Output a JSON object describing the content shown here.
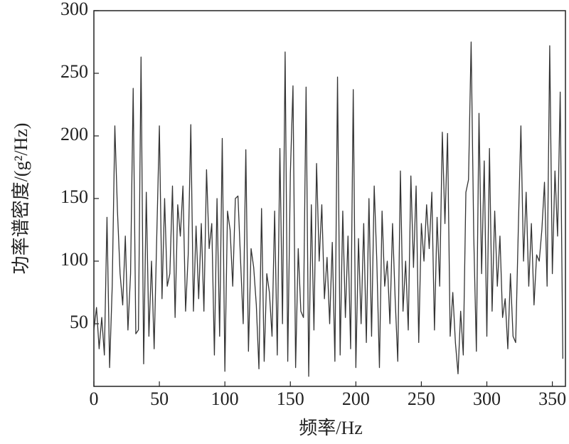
{
  "chart_data": {
    "type": "line",
    "xlabel": "频率/Hz",
    "ylabel": "功率谱密度/(g²/Hz)",
    "x": [
      0,
      2,
      4,
      6,
      8,
      10,
      12,
      14,
      16,
      18,
      20,
      22,
      24,
      26,
      28,
      30,
      32,
      34,
      36,
      38,
      40,
      42,
      44,
      46,
      48,
      50,
      52,
      54,
      56,
      58,
      60,
      62,
      64,
      66,
      68,
      70,
      72,
      74,
      76,
      78,
      80,
      82,
      84,
      86,
      88,
      90,
      92,
      94,
      96,
      98,
      100,
      102,
      104,
      106,
      108,
      110,
      112,
      114,
      116,
      118,
      120,
      122,
      124,
      126,
      128,
      130,
      132,
      134,
      136,
      138,
      140,
      142,
      144,
      146,
      148,
      150,
      152,
      154,
      156,
      158,
      160,
      162,
      164,
      166,
      168,
      170,
      172,
      174,
      176,
      178,
      180,
      182,
      184,
      186,
      188,
      190,
      192,
      194,
      196,
      198,
      200,
      202,
      204,
      206,
      208,
      210,
      212,
      214,
      216,
      218,
      220,
      222,
      224,
      226,
      228,
      230,
      232,
      234,
      236,
      238,
      240,
      242,
      244,
      246,
      248,
      250,
      252,
      254,
      256,
      258,
      260,
      262,
      264,
      266,
      268,
      270,
      272,
      274,
      276,
      278,
      280,
      282,
      284,
      286,
      288,
      290,
      292,
      294,
      296,
      298,
      300,
      302,
      304,
      306,
      308,
      310,
      312,
      314,
      316,
      318,
      320,
      322,
      324,
      326,
      328,
      330,
      332,
      334,
      336,
      338,
      340,
      342,
      344,
      346,
      348,
      350,
      352,
      354,
      356,
      358
    ],
    "values": [
      45,
      63,
      30,
      55,
      25,
      135,
      15,
      80,
      208,
      140,
      90,
      65,
      120,
      45,
      90,
      238,
      42,
      45,
      263,
      18,
      155,
      40,
      100,
      30,
      120,
      208,
      70,
      150,
      80,
      90,
      160,
      55,
      145,
      120,
      160,
      60,
      105,
      209,
      60,
      128,
      70,
      130,
      60,
      173,
      110,
      130,
      25,
      150,
      40,
      198,
      12,
      140,
      125,
      80,
      150,
      152,
      100,
      50,
      189,
      28,
      110,
      95,
      65,
      14,
      142,
      20,
      90,
      75,
      40,
      140,
      25,
      190,
      50,
      267,
      20,
      170,
      240,
      15,
      110,
      60,
      55,
      239,
      8,
      145,
      45,
      178,
      100,
      145,
      70,
      103,
      50,
      115,
      20,
      247,
      25,
      140,
      55,
      120,
      30,
      237,
      15,
      118,
      50,
      130,
      35,
      150,
      40,
      160,
      100,
      15,
      140,
      80,
      100,
      50,
      130,
      70,
      20,
      172,
      60,
      100,
      45,
      168,
      95,
      160,
      35,
      130,
      100,
      145,
      110,
      155,
      45,
      135,
      80,
      203,
      130,
      202,
      40,
      75,
      35,
      10,
      60,
      25,
      155,
      165,
      275,
      120,
      28,
      218,
      90,
      180,
      40,
      190,
      60,
      140,
      80,
      120,
      55,
      70,
      30,
      90,
      40,
      35,
      125,
      208,
      100,
      155,
      80,
      130,
      65,
      105,
      100,
      125,
      163,
      80,
      272,
      90,
      172,
      120,
      235,
      22
    ],
    "color": "#333333",
    "xlim": [
      0,
      360
    ],
    "xticks": [
      0,
      50,
      100,
      150,
      200,
      250,
      300,
      350
    ],
    "ylim": [
      0,
      300
    ],
    "yticks": [
      50,
      100,
      150,
      200,
      250,
      300
    ]
  }
}
